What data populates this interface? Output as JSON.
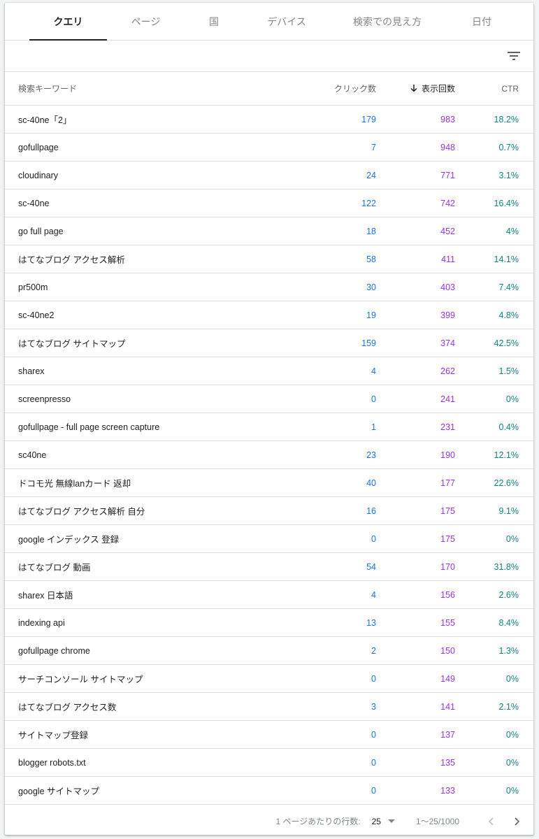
{
  "tabs": [
    {
      "label": "クエリ",
      "active": true
    },
    {
      "label": "ページ",
      "active": false
    },
    {
      "label": "国",
      "active": false
    },
    {
      "label": "デバイス",
      "active": false
    },
    {
      "label": "検索での見え方",
      "active": false
    },
    {
      "label": "日付",
      "active": false
    }
  ],
  "toolbar": {
    "filter_icon": "filter-list-icon"
  },
  "table": {
    "headers": {
      "keyword": "検索キーワード",
      "clicks": "クリック数",
      "impressions": "表示回数",
      "ctr": "CTR"
    },
    "sort": {
      "column": "impressions",
      "direction": "desc",
      "icon": "arrow-down-icon"
    },
    "rows": [
      {
        "keyword": "sc-40ne「2」",
        "clicks": "179",
        "impressions": "983",
        "ctr": "18.2%"
      },
      {
        "keyword": "gofullpage",
        "clicks": "7",
        "impressions": "948",
        "ctr": "0.7%"
      },
      {
        "keyword": "cloudinary",
        "clicks": "24",
        "impressions": "771",
        "ctr": "3.1%"
      },
      {
        "keyword": "sc-40ne",
        "clicks": "122",
        "impressions": "742",
        "ctr": "16.4%"
      },
      {
        "keyword": "go full page",
        "clicks": "18",
        "impressions": "452",
        "ctr": "4%"
      },
      {
        "keyword": "はてなブログ アクセス解析",
        "clicks": "58",
        "impressions": "411",
        "ctr": "14.1%"
      },
      {
        "keyword": "pr500m",
        "clicks": "30",
        "impressions": "403",
        "ctr": "7.4%"
      },
      {
        "keyword": "sc-40ne2",
        "clicks": "19",
        "impressions": "399",
        "ctr": "4.8%"
      },
      {
        "keyword": "はてなブログ サイトマップ",
        "clicks": "159",
        "impressions": "374",
        "ctr": "42.5%"
      },
      {
        "keyword": "sharex",
        "clicks": "4",
        "impressions": "262",
        "ctr": "1.5%"
      },
      {
        "keyword": "screenpresso",
        "clicks": "0",
        "impressions": "241",
        "ctr": "0%"
      },
      {
        "keyword": "gofullpage - full page screen capture",
        "clicks": "1",
        "impressions": "231",
        "ctr": "0.4%"
      },
      {
        "keyword": "sc40ne",
        "clicks": "23",
        "impressions": "190",
        "ctr": "12.1%"
      },
      {
        "keyword": "ドコモ光 無線lanカード 返却",
        "clicks": "40",
        "impressions": "177",
        "ctr": "22.6%"
      },
      {
        "keyword": "はてなブログ アクセス解析 自分",
        "clicks": "16",
        "impressions": "175",
        "ctr": "9.1%"
      },
      {
        "keyword": "google インデックス 登録",
        "clicks": "0",
        "impressions": "175",
        "ctr": "0%"
      },
      {
        "keyword": "はてなブログ 動画",
        "clicks": "54",
        "impressions": "170",
        "ctr": "31.8%"
      },
      {
        "keyword": "sharex 日本語",
        "clicks": "4",
        "impressions": "156",
        "ctr": "2.6%"
      },
      {
        "keyword": "indexing api",
        "clicks": "13",
        "impressions": "155",
        "ctr": "8.4%"
      },
      {
        "keyword": "gofullpage chrome",
        "clicks": "2",
        "impressions": "150",
        "ctr": "1.3%"
      },
      {
        "keyword": "サーチコンソール サイトマップ",
        "clicks": "0",
        "impressions": "149",
        "ctr": "0%"
      },
      {
        "keyword": "はてなブログ アクセス数",
        "clicks": "3",
        "impressions": "141",
        "ctr": "2.1%"
      },
      {
        "keyword": "サイトマップ登録",
        "clicks": "0",
        "impressions": "137",
        "ctr": "0%"
      },
      {
        "keyword": "blogger robots.txt",
        "clicks": "0",
        "impressions": "135",
        "ctr": "0%"
      },
      {
        "keyword": "google サイトマップ",
        "clicks": "0",
        "impressions": "133",
        "ctr": "0%"
      }
    ]
  },
  "footer": {
    "rows_per_page_label": "1 ページあたりの行数:",
    "rows_per_page_value": "25",
    "range": "1〜25/1000"
  },
  "colors": {
    "clicks": "#1a73e8",
    "impressions": "#9334e6",
    "ctr": "#12857a",
    "active_tab": "#202124",
    "inactive_tab": "#80868b"
  }
}
